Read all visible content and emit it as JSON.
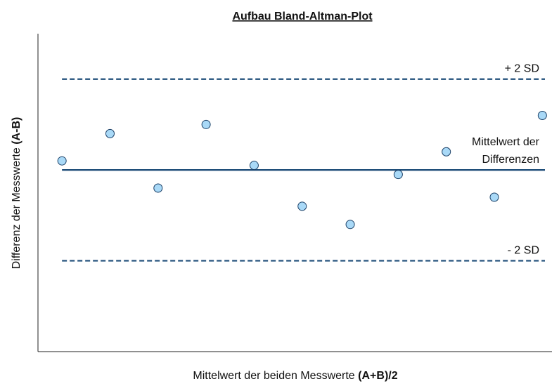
{
  "chart_data": {
    "type": "scatter",
    "title": "Aufbau Bland-Altman-Plot",
    "x_label": [
      "Mittelwert der beiden Messwerte",
      "(A+B)/2"
    ],
    "y_label": [
      "Differenz der Messwerte",
      "(A-B)"
    ],
    "x": [
      1,
      2,
      3,
      4,
      5,
      6,
      7,
      8,
      9,
      10,
      11
    ],
    "values": [
      1,
      4,
      -2,
      5,
      0.5,
      -4,
      -6,
      -0.5,
      2,
      -3,
      6
    ],
    "color": "#a9d9f7",
    "edge_color": "#1a3f66",
    "xlim": [
      0.5,
      11.2
    ],
    "ylim": [
      -20,
      15
    ],
    "reference_lines": [
      {
        "label": [
          "+ 2 SD"
        ],
        "value": 10,
        "style": "dashed"
      },
      {
        "label": [
          "Mittelwert der",
          "Differenzen"
        ],
        "value": 0,
        "style": "solid"
      },
      {
        "label": [
          "- 2 SD"
        ],
        "value": -10,
        "style": "dashed"
      }
    ],
    "line_color": "#1f4e79"
  }
}
